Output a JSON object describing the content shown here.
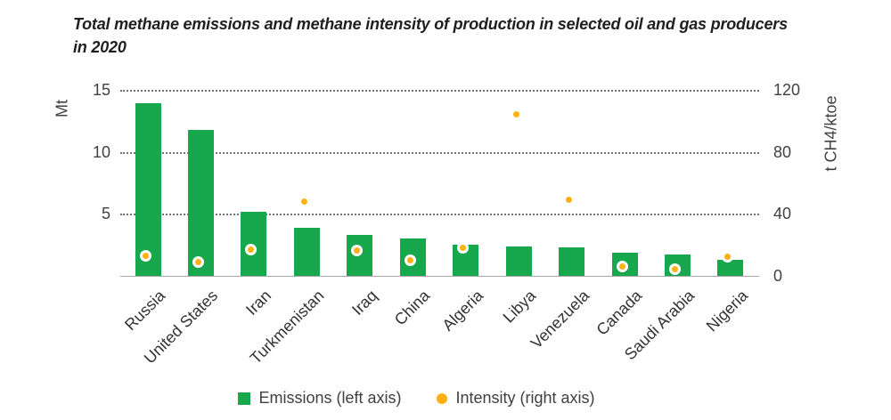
{
  "title": {
    "line1": "Total methane emissions and methane intensity of production in selected oil and gas producers",
    "line2": "in 2020"
  },
  "left_axis": {
    "unit": "Mt",
    "ticks": [
      15,
      10,
      5
    ],
    "max": 15
  },
  "right_axis": {
    "unit": "t CH4/ktoe",
    "ticks": [
      120,
      80,
      40,
      0
    ],
    "max": 120
  },
  "legend": {
    "emissions_label": "Emissions (left axis)",
    "intensity_label": "Intensity (right axis)"
  },
  "colors": {
    "bar_green": "#17a74c",
    "dot_yellow": "#ffb114",
    "gridline": "#595959",
    "baseline": "#a6a6a6"
  },
  "chart_data": {
    "type": "bar",
    "subtype": "combo bar + scatter, dual axis",
    "title": "Total methane emissions and methane intensity of production in selected oil and gas producers in 2020",
    "categories": [
      "Russia",
      "United States",
      "Iran",
      "Turkmenistan",
      "Iraq",
      "China",
      "Algeria",
      "Libya",
      "Venezuela",
      "Canada",
      "Saudi Arabia",
      "Nigeria"
    ],
    "series": [
      {
        "name": "Emissions (left axis)",
        "type": "bar",
        "axis": "left",
        "unit": "Mt",
        "values": [
          13.9,
          11.8,
          5.2,
          3.9,
          3.3,
          3.0,
          2.5,
          2.4,
          2.3,
          1.9,
          1.7,
          1.3
        ]
      },
      {
        "name": "Intensity (right axis)",
        "type": "scatter",
        "axis": "right",
        "unit": "t CH4/ktoe",
        "values": [
          12,
          8,
          16,
          47,
          15,
          9,
          17,
          103,
          48,
          5,
          3,
          11
        ]
      }
    ],
    "left_ylabel": "Mt",
    "right_ylabel": "t CH4/ktoe",
    "left_ylim": [
      0,
      15
    ],
    "right_ylim": [
      0,
      120
    ],
    "grid": "horizontal dotted at left-axis 5/10/15 (right-axis 40/80/120)",
    "legend_position": "bottom center"
  }
}
